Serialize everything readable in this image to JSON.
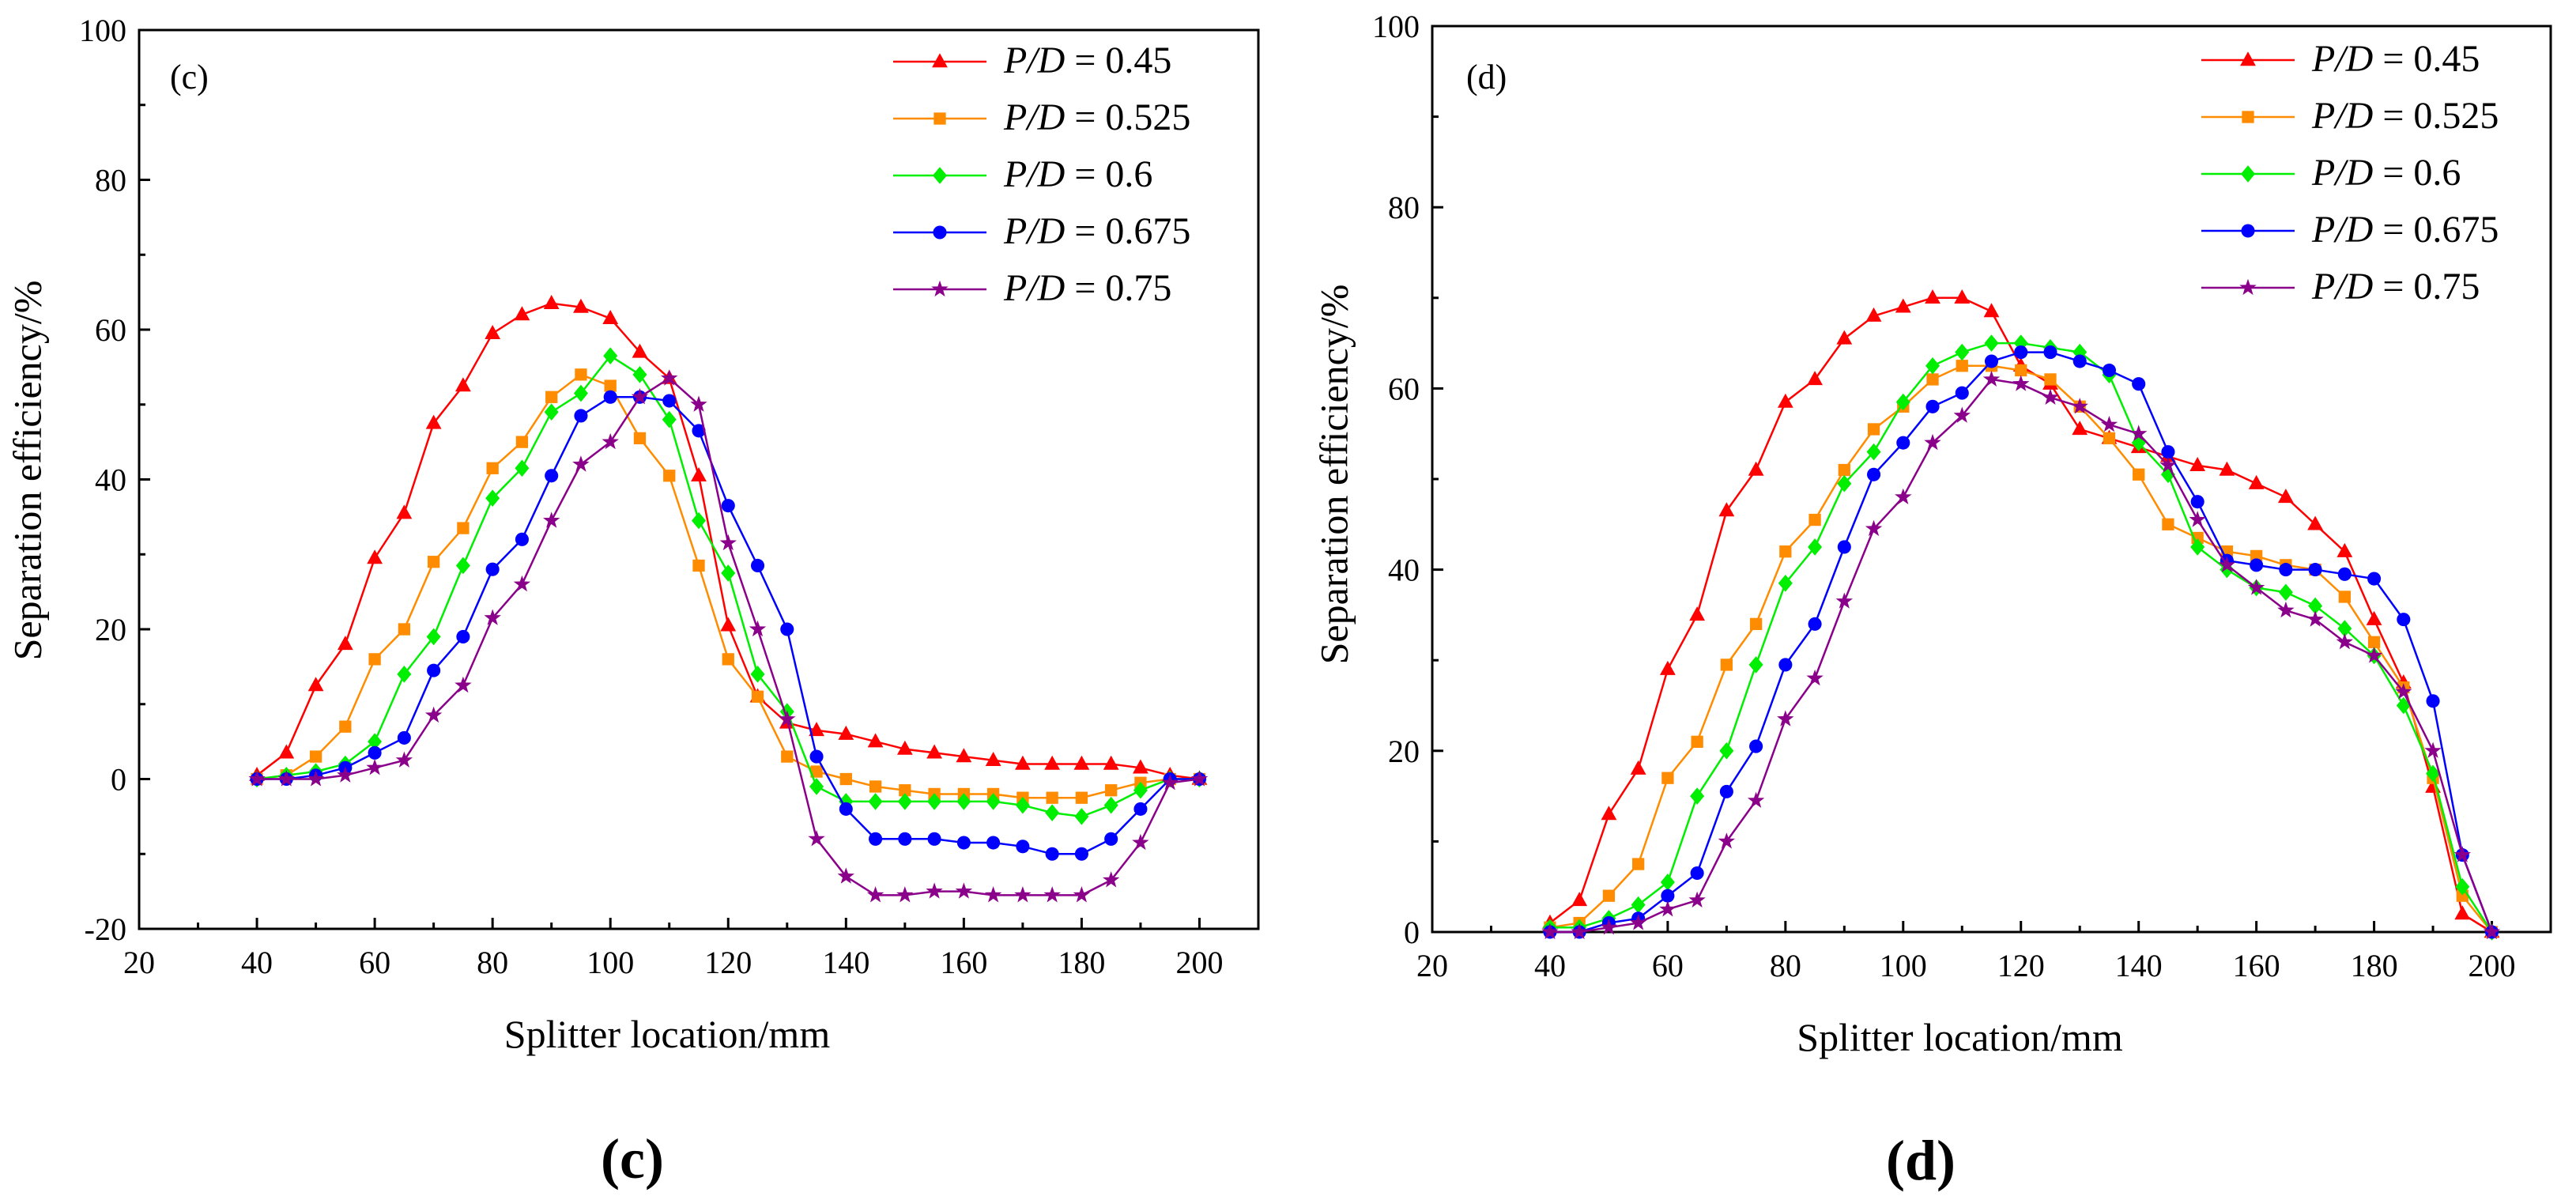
{
  "chart_data": [
    {
      "type": "line",
      "panel_label": "(c)",
      "caption": "(c)",
      "xlabel": "Splitter location/mm",
      "ylabel": "Separation efficiency/%",
      "xlim": [
        20,
        210
      ],
      "ylim": [
        -20,
        100
      ],
      "x_ticks": [
        20,
        40,
        60,
        80,
        100,
        120,
        140,
        160,
        180,
        200
      ],
      "y_ticks": [
        -20,
        0,
        20,
        40,
        60,
        80,
        100
      ],
      "legend_position": "top-right",
      "x": [
        40,
        45,
        50,
        55,
        60,
        65,
        70,
        75,
        80,
        85,
        90,
        95,
        100,
        105,
        110,
        115,
        120,
        125,
        130,
        135,
        140,
        145,
        150,
        155,
        160,
        165,
        170,
        175,
        180,
        185,
        190,
        195,
        200
      ],
      "series": [
        {
          "name": "P/D = 0.45",
          "name_italic": "P/D",
          "name_value": " = 0.45",
          "color": "#ff0000",
          "marker": "triangle",
          "values": [
            0.5,
            3.5,
            12.5,
            18,
            29.5,
            35.5,
            47.5,
            52.5,
            59.5,
            62,
            63.5,
            63,
            61.5,
            57,
            53.5,
            40.5,
            20.5,
            11,
            7.5,
            6.5,
            6,
            5,
            4,
            3.5,
            3,
            2.5,
            2,
            2,
            2,
            2,
            1.5,
            0.5,
            0
          ]
        },
        {
          "name": "P/D = 0.525",
          "name_italic": "P/D",
          "name_value": " = 0.525",
          "color": "#ff8c00",
          "marker": "square",
          "values": [
            0,
            0.5,
            3,
            7,
            16,
            20,
            29,
            33.5,
            41.5,
            45,
            51,
            54,
            52.5,
            45.5,
            40.5,
            28.5,
            16,
            11,
            3,
            1,
            0,
            -1,
            -1.5,
            -2,
            -2,
            -2,
            -2.5,
            -2.5,
            -2.5,
            -1.5,
            -0.5,
            0,
            0
          ]
        },
        {
          "name": "P/D = 0.6",
          "name_italic": "P/D",
          "name_value": " = 0.6",
          "color": "#00ee00",
          "marker": "diamond",
          "values": [
            0,
            0.5,
            1,
            2,
            5,
            14,
            19,
            28.5,
            37.5,
            41.5,
            49,
            51.5,
            56.5,
            54,
            48,
            34.5,
            27.5,
            14,
            9,
            -1,
            -3,
            -3,
            -3,
            -3,
            -3,
            -3,
            -3.5,
            -4.5,
            -5,
            -3.5,
            -1.5,
            0,
            0
          ]
        },
        {
          "name": "P/D = 0.675",
          "name_italic": "P/D",
          "name_value": " = 0.675",
          "color": "#0000ff",
          "marker": "circle",
          "values": [
            0,
            0,
            0.5,
            1.5,
            3.5,
            5.5,
            14.5,
            19,
            28,
            32,
            40.5,
            48.5,
            51,
            51,
            50.5,
            46.5,
            36.5,
            28.5,
            20,
            3,
            -4,
            -8,
            -8,
            -8,
            -8.5,
            -8.5,
            -9,
            -10,
            -10,
            -8,
            -4,
            0,
            0
          ]
        },
        {
          "name": "P/D = 0.75",
          "name_italic": "P/D",
          "name_value": " = 0.75",
          "color": "#8b008b",
          "marker": "star",
          "values": [
            0,
            0,
            0,
            0.5,
            1.5,
            2.5,
            8.5,
            12.5,
            21.5,
            26,
            34.5,
            42,
            45,
            51,
            53.5,
            50,
            31.5,
            20,
            8,
            -8,
            -13,
            -15.5,
            -15.5,
            -15,
            -15,
            -15.5,
            -15.5,
            -15.5,
            -15.5,
            -13.5,
            -8.5,
            -0.5,
            0
          ]
        }
      ]
    },
    {
      "type": "line",
      "panel_label": "(d)",
      "caption": "(d)",
      "xlabel": "Splitter location/mm",
      "ylabel": "Separation efficiency/%",
      "xlim": [
        20,
        210
      ],
      "ylim": [
        0,
        100
      ],
      "x_ticks": [
        20,
        40,
        60,
        80,
        100,
        120,
        140,
        160,
        180,
        200
      ],
      "y_ticks": [
        0,
        20,
        40,
        60,
        80,
        100
      ],
      "legend_position": "top-right",
      "x": [
        40,
        45,
        50,
        55,
        60,
        65,
        70,
        75,
        80,
        85,
        90,
        95,
        100,
        105,
        110,
        115,
        120,
        125,
        130,
        135,
        140,
        145,
        150,
        155,
        160,
        165,
        170,
        175,
        180,
        185,
        190,
        195,
        200
      ],
      "series": [
        {
          "name": "P/D = 0.45",
          "name_italic": "P/D",
          "name_value": " = 0.45",
          "color": "#ff0000",
          "marker": "triangle",
          "values": [
            1,
            3.5,
            13,
            18,
            29,
            35,
            46.5,
            51,
            58.5,
            61,
            65.5,
            68,
            69,
            70,
            70,
            68.5,
            62.5,
            60.5,
            55.5,
            54.5,
            53.5,
            52.5,
            51.5,
            51,
            49.5,
            48,
            45,
            42,
            34.5,
            27.5,
            16,
            2,
            0
          ]
        },
        {
          "name": "P/D = 0.525",
          "name_italic": "P/D",
          "name_value": " = 0.525",
          "color": "#ff8c00",
          "marker": "square",
          "values": [
            0.5,
            1,
            4,
            7.5,
            17,
            21,
            29.5,
            34,
            42,
            45.5,
            51,
            55.5,
            58,
            61,
            62.5,
            62.5,
            62,
            61,
            58,
            54.5,
            50.5,
            45,
            43.5,
            42,
            41.5,
            40.5,
            40,
            37,
            32,
            27,
            17,
            4,
            0
          ]
        },
        {
          "name": "P/D = 0.6",
          "name_italic": "P/D",
          "name_value": " = 0.6",
          "color": "#00ee00",
          "marker": "diamond",
          "values": [
            0.5,
            0.5,
            1.5,
            3,
            5.5,
            15,
            20,
            29.5,
            38.5,
            42.5,
            49.5,
            53,
            58.5,
            62.5,
            64,
            65,
            65,
            64.5,
            64,
            61.5,
            54,
            50.5,
            42.5,
            40,
            38,
            37.5,
            36,
            33.5,
            30.5,
            25,
            17.5,
            5,
            0
          ]
        },
        {
          "name": "P/D = 0.675",
          "name_italic": "P/D",
          "name_value": " = 0.675",
          "color": "#0000ff",
          "marker": "circle",
          "values": [
            0,
            0,
            1,
            1.5,
            4,
            6.5,
            15.5,
            20.5,
            29.5,
            34,
            42.5,
            50.5,
            54,
            58,
            59.5,
            63,
            64,
            64,
            63,
            62,
            60.5,
            53,
            47.5,
            41,
            40.5,
            40,
            40,
            39.5,
            39,
            34.5,
            25.5,
            8.5,
            0
          ]
        },
        {
          "name": "P/D = 0.75",
          "name_italic": "P/D",
          "name_value": " = 0.75",
          "color": "#8b008b",
          "marker": "star",
          "values": [
            0,
            0,
            0.5,
            1,
            2.5,
            3.5,
            10,
            14.5,
            23.5,
            28,
            36.5,
            44.5,
            48,
            54,
            57,
            61,
            60.5,
            59,
            58,
            56,
            55,
            51.5,
            45.5,
            40.5,
            38,
            35.5,
            34.5,
            32,
            30.5,
            26.5,
            20,
            8.5,
            0
          ]
        }
      ]
    }
  ]
}
